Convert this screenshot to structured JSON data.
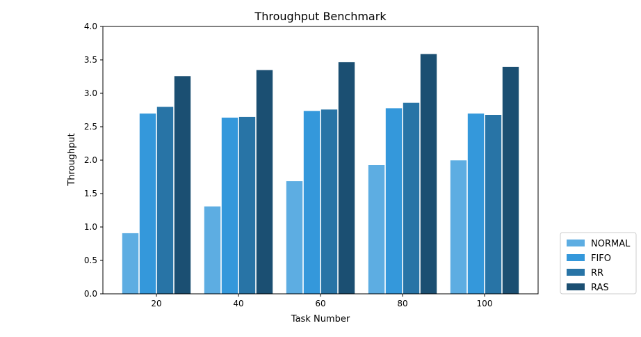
{
  "chart_data": {
    "type": "bar",
    "title": "Throughput Benchmark",
    "xlabel": "Task Number",
    "ylabel": "Throughput",
    "categories": [
      "20",
      "40",
      "60",
      "80",
      "100"
    ],
    "ylim": [
      0,
      4.0
    ],
    "yticks": [
      "0.0",
      "0.5",
      "1.0",
      "1.5",
      "2.0",
      "2.5",
      "3.0",
      "3.5",
      "4.0"
    ],
    "grid": false,
    "legend_position": "bottom-right, outside plot",
    "series": [
      {
        "name": "NORMAL",
        "color": "#5dade2",
        "values": [
          0.91,
          1.31,
          1.69,
          1.93,
          2.0
        ]
      },
      {
        "name": "FIFO",
        "color": "#3498db",
        "values": [
          2.7,
          2.64,
          2.74,
          2.78,
          2.7
        ]
      },
      {
        "name": "RR",
        "color": "#2874a6",
        "values": [
          2.8,
          2.65,
          2.76,
          2.86,
          2.68
        ]
      },
      {
        "name": "RAS",
        "color": "#1b4f72",
        "values": [
          3.26,
          3.35,
          3.47,
          3.59,
          3.4
        ]
      }
    ]
  }
}
